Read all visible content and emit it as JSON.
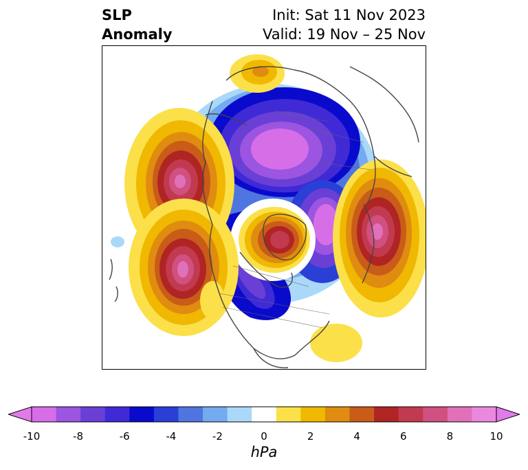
{
  "header": {
    "title_line1": "SLP",
    "title_line2": "Anomaly",
    "init": "Init: Sat 11 Nov 2023",
    "valid": "Valid: 19 Nov – 25 Nov"
  },
  "map": {
    "projection": "north-polar-stereographic",
    "field": "sea-level-pressure-anomaly",
    "features": [
      {
        "name": "arctic-low",
        "sign": "negative",
        "peak_hpa": -10
      },
      {
        "name": "north-pacific-high-north",
        "sign": "positive",
        "peak_hpa": 8
      },
      {
        "name": "north-pacific-high-south",
        "sign": "positive",
        "peak_hpa": 8
      },
      {
        "name": "greenland-high",
        "sign": "positive",
        "peak_hpa": 6
      },
      {
        "name": "north-atlantic-high",
        "sign": "positive",
        "peak_hpa": 8
      },
      {
        "name": "north-america-trough",
        "sign": "negative",
        "peak_hpa": -6
      },
      {
        "name": "siberia-low",
        "sign": "negative",
        "peak_hpa": -10
      }
    ]
  },
  "colorbar": {
    "unit": "hPa",
    "extend": "both",
    "levels": [
      -10,
      -9,
      -8,
      -7,
      -6,
      -5,
      -4,
      -3,
      -2,
      -1,
      1,
      2,
      3,
      4,
      5,
      6,
      7,
      8,
      9,
      10
    ],
    "tick_labels": [
      "-10",
      "-8",
      "-6",
      "-4",
      "-2",
      "0",
      "2",
      "4",
      "6",
      "8",
      "10"
    ],
    "colors": [
      "#d66ee8",
      "#9b55e0",
      "#6a3fd6",
      "#3f2ad6",
      "#0a0acc",
      "#2a3fd6",
      "#4f76e0",
      "#74aaf0",
      "#aad8f8",
      "#ffffff",
      "#fbe04a",
      "#f0b800",
      "#e08c10",
      "#c85c18",
      "#b02424",
      "#c23a50",
      "#d05080",
      "#e070b8",
      "#ea88e0"
    ],
    "under_color": "#e27ae8",
    "over_color": "#e27ae8"
  }
}
